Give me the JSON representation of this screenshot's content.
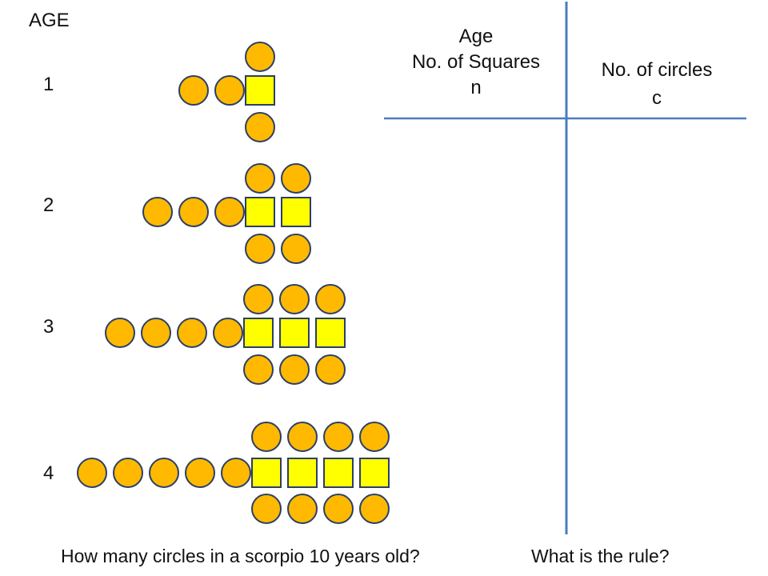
{
  "heading": "AGE",
  "rows": [
    {
      "age": "1",
      "squares": 1
    },
    {
      "age": "2",
      "squares": 2
    },
    {
      "age": "3",
      "squares": 3
    },
    {
      "age": "4",
      "squares": 4
    }
  ],
  "table": {
    "left_header": [
      "Age",
      "No. of Squares",
      "n"
    ],
    "right_header": [
      "No. of circles",
      "c"
    ]
  },
  "questions": {
    "q1": "How many circles in a scorpio 10 years old?",
    "q2": "What is the rule?"
  },
  "colors": {
    "circle_fill": "#FFB900",
    "square_fill": "#FFFF00",
    "shape_stroke": "#2B3F67",
    "table_line": "#4A7EBB"
  }
}
